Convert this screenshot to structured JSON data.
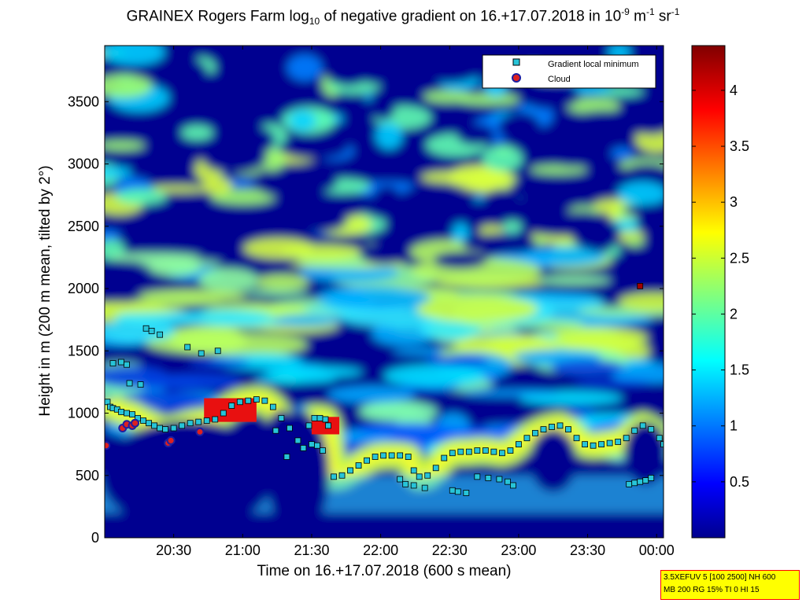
{
  "title": {
    "prefix": "GRAINEX Rogers Farm log",
    "sub": "10",
    "middle": " of negative gradient on 16.+17.07.2018 in 10",
    "sup1": "-9",
    "unit_m": " m",
    "sup2": "-1",
    "unit_sr": " sr",
    "sup3": "-1"
  },
  "info_box": {
    "line1": "3.5XEFUV 5 [100 2500] NH 600",
    "line2": "MB 200 RG 15% TI 0 HI 15"
  },
  "colors": {
    "background_low": "#000088",
    "cloud_fill": "#dd2020",
    "cloud_edge": "#1e1ea0",
    "gradient_fill": "#27c4d8"
  },
  "chart_data": {
    "type": "heatmap",
    "xlabel": "Time on 16.+17.07.2018 (600 s mean)",
    "ylabel": "Height in m (200 m mean, tilted by 2°)",
    "x_tick_labels": [
      "20:30",
      "21:00",
      "21:30",
      "22:00",
      "22:30",
      "23:00",
      "23:30",
      "00:00"
    ],
    "x_tick_hours": [
      20.5,
      21.0,
      21.5,
      22.0,
      22.5,
      23.0,
      23.5,
      24.0
    ],
    "xlim_hours": [
      20.0,
      24.05
    ],
    "y_ticks": [
      0,
      500,
      1000,
      1500,
      2000,
      2500,
      3000,
      3500
    ],
    "ylim": [
      0,
      3950
    ],
    "colorbar": {
      "colormap": "jet",
      "range": [
        0.0,
        4.4
      ],
      "ticks": [
        0.5,
        1,
        1.5,
        2,
        2.5,
        3,
        3.5,
        4
      ],
      "tick_labels": [
        "0.5",
        "1",
        "1.5",
        "2",
        "2.5",
        "3",
        "3.5",
        "4"
      ]
    },
    "legend": {
      "placement": "top-right",
      "entries": [
        {
          "label": "Gradient local minimum",
          "marker": "square"
        },
        {
          "label": "Cloud",
          "marker": "circle"
        }
      ]
    },
    "series": [
      {
        "name": "Gradient local minimum",
        "points": [
          [
            20.02,
            1090
          ],
          [
            20.04,
            1050
          ],
          [
            20.06,
            1040
          ],
          [
            20.09,
            1030
          ],
          [
            20.12,
            1010
          ],
          [
            20.16,
            1000
          ],
          [
            20.2,
            990
          ],
          [
            20.24,
            960
          ],
          [
            20.28,
            940
          ],
          [
            20.32,
            920
          ],
          [
            20.36,
            900
          ],
          [
            20.4,
            880
          ],
          [
            20.44,
            870
          ],
          [
            20.5,
            880
          ],
          [
            20.56,
            900
          ],
          [
            20.62,
            920
          ],
          [
            20.68,
            930
          ],
          [
            20.74,
            940
          ],
          [
            20.8,
            950
          ],
          [
            20.86,
            1000
          ],
          [
            20.92,
            1060
          ],
          [
            20.98,
            1090
          ],
          [
            21.04,
            1100
          ],
          [
            21.1,
            1110
          ],
          [
            21.16,
            1100
          ],
          [
            21.22,
            1050
          ],
          [
            21.28,
            960
          ],
          [
            21.34,
            880
          ],
          [
            21.4,
            780
          ],
          [
            21.44,
            720
          ],
          [
            21.48,
            900
          ],
          [
            21.52,
            960
          ],
          [
            21.56,
            960
          ],
          [
            21.6,
            950
          ],
          [
            21.62,
            900
          ],
          [
            21.66,
            490
          ],
          [
            21.72,
            500
          ],
          [
            21.78,
            540
          ],
          [
            21.84,
            580
          ],
          [
            21.9,
            620
          ],
          [
            21.96,
            650
          ],
          [
            22.02,
            660
          ],
          [
            22.08,
            660
          ],
          [
            22.14,
            660
          ],
          [
            22.2,
            650
          ],
          [
            22.24,
            540
          ],
          [
            22.28,
            490
          ],
          [
            22.34,
            500
          ],
          [
            22.4,
            560
          ],
          [
            22.46,
            640
          ],
          [
            22.52,
            680
          ],
          [
            22.58,
            690
          ],
          [
            22.64,
            690
          ],
          [
            22.7,
            700
          ],
          [
            22.76,
            700
          ],
          [
            22.82,
            690
          ],
          [
            22.88,
            680
          ],
          [
            22.94,
            700
          ],
          [
            23.0,
            750
          ],
          [
            23.06,
            800
          ],
          [
            23.12,
            840
          ],
          [
            23.18,
            870
          ],
          [
            23.24,
            890
          ],
          [
            23.3,
            900
          ],
          [
            23.36,
            870
          ],
          [
            23.42,
            800
          ],
          [
            23.48,
            750
          ],
          [
            23.54,
            740
          ],
          [
            23.6,
            750
          ],
          [
            23.66,
            760
          ],
          [
            23.72,
            770
          ],
          [
            23.78,
            800
          ],
          [
            23.84,
            860
          ],
          [
            23.9,
            900
          ],
          [
            23.96,
            870
          ],
          [
            24.02,
            800
          ],
          [
            24.05,
            750
          ],
          [
            20.06,
            1400
          ],
          [
            20.12,
            1410
          ],
          [
            20.16,
            1390
          ],
          [
            20.3,
            1680
          ],
          [
            20.34,
            1660
          ],
          [
            20.4,
            1630
          ],
          [
            20.6,
            1530
          ],
          [
            20.7,
            1480
          ],
          [
            20.82,
            1500
          ],
          [
            20.18,
            1240
          ],
          [
            20.26,
            1230
          ],
          [
            22.14,
            470
          ],
          [
            22.18,
            430
          ],
          [
            22.24,
            420
          ],
          [
            22.32,
            400
          ],
          [
            22.52,
            380
          ],
          [
            22.56,
            370
          ],
          [
            22.62,
            360
          ],
          [
            22.7,
            490
          ],
          [
            22.78,
            480
          ],
          [
            22.86,
            470
          ],
          [
            22.92,
            450
          ],
          [
            22.96,
            420
          ],
          [
            23.8,
            430
          ],
          [
            23.84,
            440
          ],
          [
            23.88,
            450
          ],
          [
            23.92,
            460
          ],
          [
            23.96,
            480
          ],
          [
            21.24,
            860
          ],
          [
            21.32,
            650
          ],
          [
            21.5,
            750
          ],
          [
            21.54,
            740
          ],
          [
            21.58,
            700
          ]
        ]
      },
      {
        "name": "Cloud",
        "points": [
          [
            20.01,
            740
          ],
          [
            20.13,
            880
          ],
          [
            20.16,
            910
          ],
          [
            20.2,
            900
          ],
          [
            20.22,
            920
          ],
          [
            20.46,
            760
          ],
          [
            20.48,
            780
          ],
          [
            20.69,
            850
          ]
        ]
      }
    ],
    "isolated_high_marker": {
      "time": 23.88,
      "height": 2020
    }
  }
}
